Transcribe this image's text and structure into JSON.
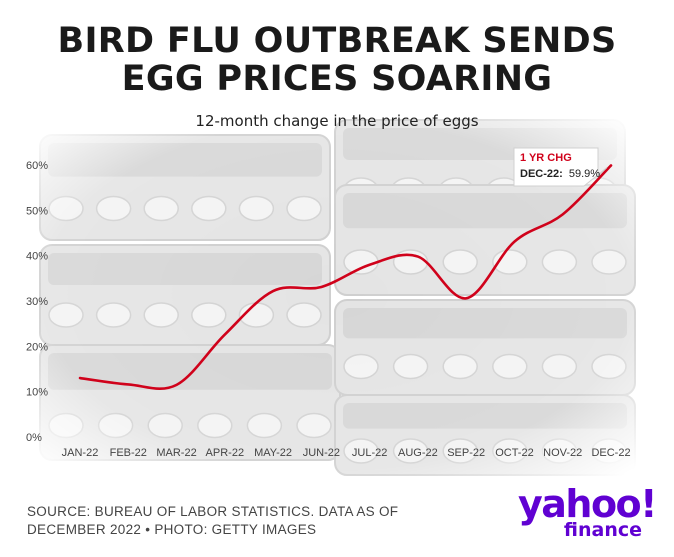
{
  "headline": {
    "line1": "BIRD FLU OUTBREAK SENDS",
    "line2": "EGG PRICES SOARING"
  },
  "subtitle": "12-month change in the price of eggs",
  "callout": {
    "title": "1 YR CHG",
    "label": "DEC-22:",
    "value": "59.9%"
  },
  "source": "SOURCE: BUREAU OF LABOR STATISTICS. DATA AS OF DECEMBER 2022 • PHOTO: GETTY IMAGES",
  "brand": {
    "name": "yahoo!",
    "sub": "finance"
  },
  "colors": {
    "line": "#d0021b",
    "accent": "#6001d2",
    "text": "#1a1a1a"
  },
  "chart_data": {
    "type": "line",
    "title": "BIRD FLU OUTBREAK SENDS EGG PRICES SOARING",
    "subtitle": "12-month change in the price of eggs",
    "categories": [
      "JAN-22",
      "FEB-22",
      "MAR-22",
      "APR-22",
      "MAY-22",
      "JUN-22",
      "JUL-22",
      "AUG-22",
      "SEP-22",
      "OCT-22",
      "NOV-22",
      "DEC-22"
    ],
    "yticks": [
      "0%",
      "10%",
      "20%",
      "30%",
      "40%",
      "50%",
      "60%"
    ],
    "ylim": [
      0,
      60
    ],
    "series": [
      {
        "values": [
          13.0,
          11.6,
          11.5,
          22.6,
          32.2,
          33.1,
          38.0,
          39.8,
          30.6,
          43.1,
          49.1,
          59.9
        ]
      }
    ],
    "grid": false,
    "legend": "none",
    "background": "photo of egg cartons"
  }
}
